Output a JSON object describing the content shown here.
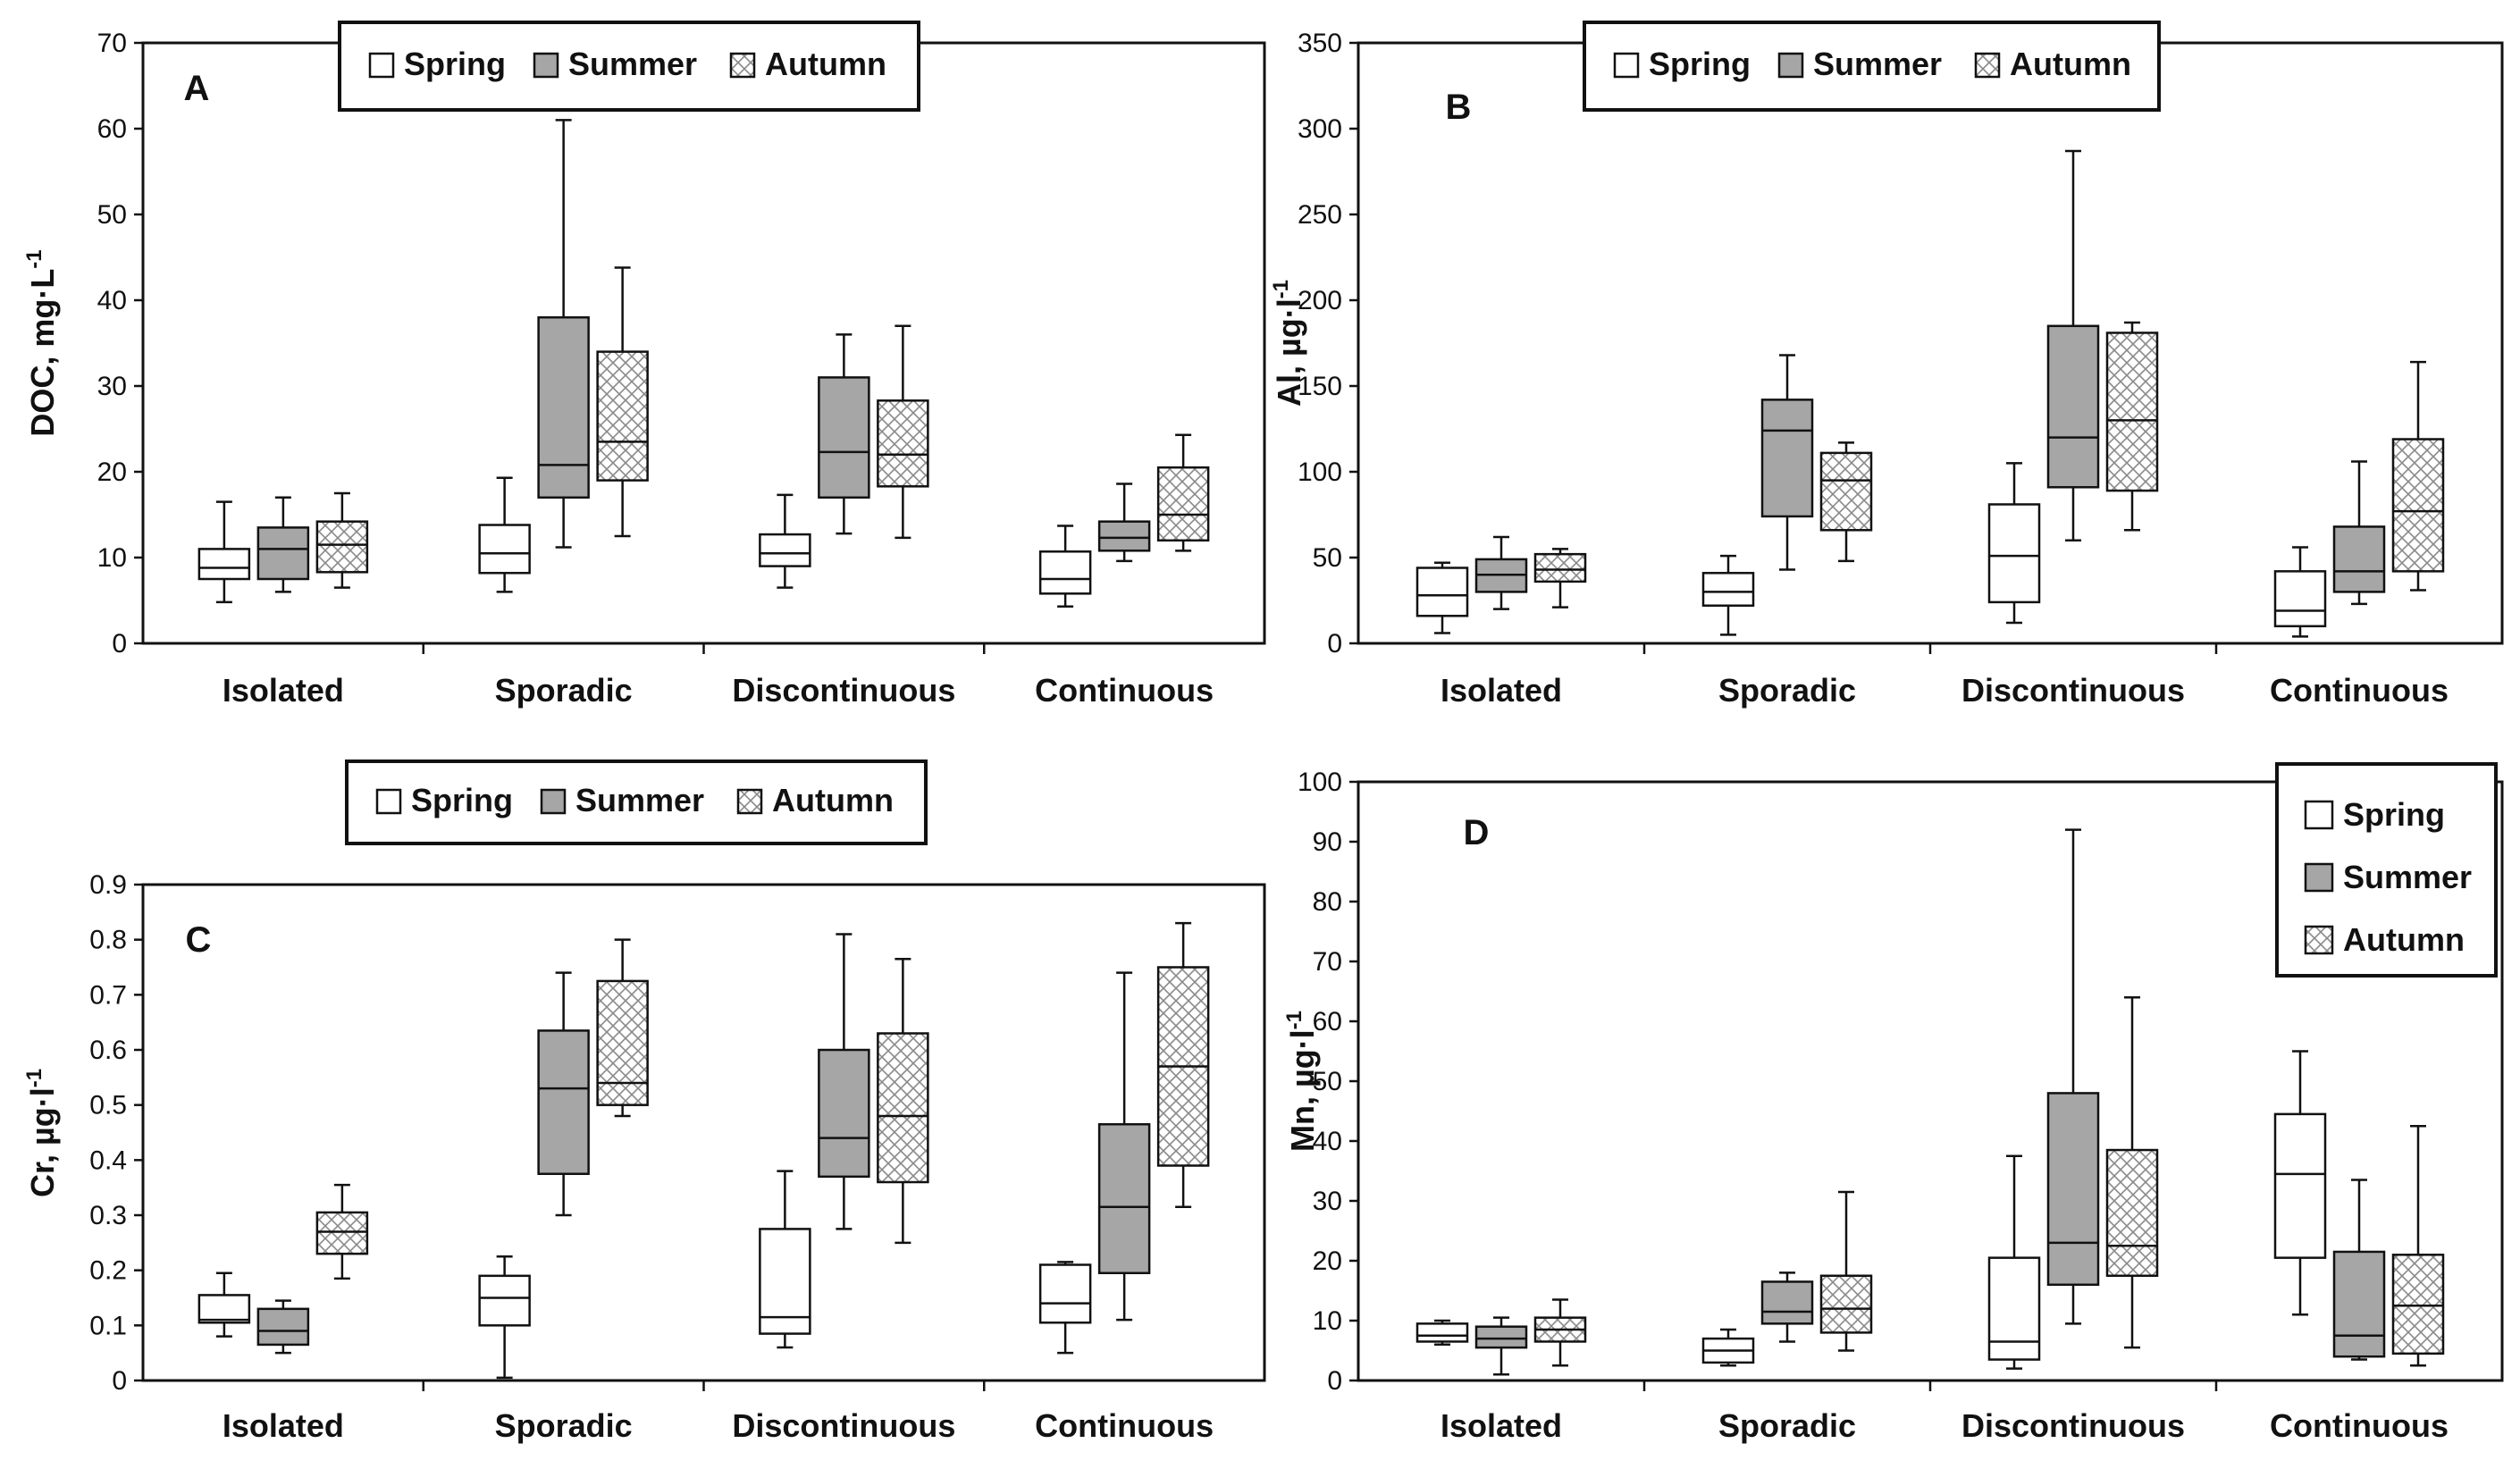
{
  "colors": {
    "spring": "#ffffff",
    "summer": "#a6a6a6",
    "autumn_bg": "#ffffff",
    "autumn_hatch": "#8a8a8a",
    "stroke": "#111111"
  },
  "chart_data": [
    {
      "type": "boxplot",
      "panel_label": "A",
      "ylabel_main": "DOC, mg·L",
      "ylabel_sup": "-1",
      "ylim": [
        0,
        70
      ],
      "yticks": [
        "0",
        "10",
        "20",
        "30",
        "40",
        "50",
        "60",
        "70"
      ],
      "categories": [
        "Isolated",
        "Sporadic",
        "Discontinuous",
        "Continuous"
      ],
      "legend": {
        "placement": "top-center",
        "layout": "horizontal",
        "entries": [
          "Spring",
          "Summer",
          "Autumn"
        ]
      },
      "series": [
        {
          "name": "Spring",
          "boxes": [
            {
              "min": 4.8,
              "q1": 7.5,
              "median": 8.8,
              "q3": 11.0,
              "max": 16.5
            },
            {
              "min": 6.0,
              "q1": 8.2,
              "median": 10.5,
              "q3": 13.8,
              "max": 19.3
            },
            {
              "min": 6.5,
              "q1": 9.0,
              "median": 10.5,
              "q3": 12.7,
              "max": 17.3
            },
            {
              "min": 4.3,
              "q1": 5.8,
              "median": 7.5,
              "q3": 10.7,
              "max": 13.7
            }
          ]
        },
        {
          "name": "Summer",
          "boxes": [
            {
              "min": 6.0,
              "q1": 7.5,
              "median": 11.0,
              "q3": 13.5,
              "max": 17.0
            },
            {
              "min": 11.2,
              "q1": 17.0,
              "median": 20.8,
              "q3": 38.0,
              "max": 61.0
            },
            {
              "min": 12.8,
              "q1": 17.0,
              "median": 22.3,
              "q3": 31.0,
              "max": 36.0
            },
            {
              "min": 9.6,
              "q1": 10.8,
              "median": 12.3,
              "q3": 14.2,
              "max": 18.6
            }
          ]
        },
        {
          "name": "Autumn",
          "boxes": [
            {
              "min": 6.5,
              "q1": 8.3,
              "median": 11.5,
              "q3": 14.2,
              "max": 17.5
            },
            {
              "min": 12.5,
              "q1": 19.0,
              "median": 23.5,
              "q3": 34.0,
              "max": 43.8
            },
            {
              "min": 12.3,
              "q1": 18.3,
              "median": 22.0,
              "q3": 28.3,
              "max": 37.0
            },
            {
              "min": 10.8,
              "q1": 12.0,
              "median": 15.0,
              "q3": 20.5,
              "max": 24.3
            }
          ]
        }
      ]
    },
    {
      "type": "boxplot",
      "panel_label": "B",
      "ylabel_main": "Al, µg·l",
      "ylabel_sup": "-1",
      "ylim": [
        0,
        350
      ],
      "yticks": [
        "0",
        "50",
        "100",
        "150",
        "200",
        "250",
        "300",
        "350"
      ],
      "categories": [
        "Isolated",
        "Sporadic",
        "Discontinuous",
        "Continuous"
      ],
      "legend": {
        "placement": "top-center",
        "layout": "horizontal",
        "entries": [
          "Spring",
          "Summer",
          "Autumn"
        ]
      },
      "series": [
        {
          "name": "Spring",
          "boxes": [
            {
              "min": 6,
              "q1": 16,
              "median": 28,
              "q3": 44,
              "max": 47
            },
            {
              "min": 5,
              "q1": 22,
              "median": 30,
              "q3": 41,
              "max": 51
            },
            {
              "min": 12,
              "q1": 24,
              "median": 51,
              "q3": 81,
              "max": 105
            },
            {
              "min": 4,
              "q1": 10,
              "median": 19,
              "q3": 42,
              "max": 56
            }
          ]
        },
        {
          "name": "Summer",
          "boxes": [
            {
              "min": 20,
              "q1": 30,
              "median": 40,
              "q3": 49,
              "max": 62
            },
            {
              "min": 43,
              "q1": 74,
              "median": 124,
              "q3": 142,
              "max": 168
            },
            {
              "min": 60,
              "q1": 91,
              "median": 120,
              "q3": 185,
              "max": 287
            },
            {
              "min": 23,
              "q1": 30,
              "median": 42,
              "q3": 68,
              "max": 106
            }
          ]
        },
        {
          "name": "Autumn",
          "boxes": [
            {
              "min": 21,
              "q1": 36,
              "median": 43,
              "q3": 52,
              "max": 55
            },
            {
              "min": 48,
              "q1": 66,
              "median": 95,
              "q3": 111,
              "max": 117
            },
            {
              "min": 66,
              "q1": 89,
              "median": 130,
              "q3": 181,
              "max": 187
            },
            {
              "min": 31,
              "q1": 42,
              "median": 77,
              "q3": 119,
              "max": 164
            }
          ]
        }
      ]
    },
    {
      "type": "boxplot",
      "panel_label": "C",
      "ylabel_main": "Cr, µg·l",
      "ylabel_sup": "-1",
      "ylim": [
        0,
        0.9
      ],
      "yticks": [
        "0",
        "0.1",
        "0.2",
        "0.3",
        "0.4",
        "0.5",
        "0.6",
        "0.7",
        "0.8",
        "0.9"
      ],
      "categories": [
        "Isolated",
        "Sporadic",
        "Discontinuous",
        "Continuous"
      ],
      "legend": {
        "placement": "above-plot",
        "layout": "horizontal",
        "entries": [
          "Spring",
          "Summer",
          "Autumn"
        ]
      },
      "series": [
        {
          "name": "Spring",
          "boxes": [
            {
              "min": 0.08,
              "q1": 0.105,
              "median": 0.11,
              "q3": 0.155,
              "max": 0.195
            },
            {
              "min": 0.005,
              "q1": 0.1,
              "median": 0.15,
              "q3": 0.19,
              "max": 0.225
            },
            {
              "min": 0.06,
              "q1": 0.085,
              "median": 0.115,
              "q3": 0.275,
              "max": 0.38
            },
            {
              "min": 0.05,
              "q1": 0.105,
              "median": 0.14,
              "q3": 0.21,
              "max": 0.215
            }
          ]
        },
        {
          "name": "Summer",
          "boxes": [
            {
              "min": 0.05,
              "q1": 0.065,
              "median": 0.09,
              "q3": 0.13,
              "max": 0.145
            },
            {
              "min": 0.3,
              "q1": 0.375,
              "median": 0.53,
              "q3": 0.635,
              "max": 0.74
            },
            {
              "min": 0.275,
              "q1": 0.37,
              "median": 0.44,
              "q3": 0.6,
              "max": 0.81
            },
            {
              "min": 0.11,
              "q1": 0.195,
              "median": 0.315,
              "q3": 0.465,
              "max": 0.74
            }
          ]
        },
        {
          "name": "Autumn",
          "boxes": [
            {
              "min": 0.185,
              "q1": 0.23,
              "median": 0.27,
              "q3": 0.305,
              "max": 0.355
            },
            {
              "min": 0.48,
              "q1": 0.5,
              "median": 0.54,
              "q3": 0.725,
              "max": 0.8
            },
            {
              "min": 0.25,
              "q1": 0.36,
              "median": 0.48,
              "q3": 0.63,
              "max": 0.765
            },
            {
              "min": 0.315,
              "q1": 0.39,
              "median": 0.57,
              "q3": 0.75,
              "max": 0.83
            }
          ]
        }
      ]
    },
    {
      "type": "boxplot",
      "panel_label": "D",
      "ylabel_main": "Mn, µg·l",
      "ylabel_sup": "-1",
      "ylim": [
        0,
        100
      ],
      "yticks": [
        "0",
        "10",
        "20",
        "30",
        "40",
        "50",
        "60",
        "70",
        "80",
        "90",
        "100"
      ],
      "categories": [
        "Isolated",
        "Sporadic",
        "Discontinuous",
        "Continuous"
      ],
      "legend": {
        "placement": "top-right",
        "layout": "vertical",
        "entries": [
          "Spring",
          "Summer",
          "Autumn"
        ]
      },
      "series": [
        {
          "name": "Spring",
          "boxes": [
            {
              "min": 6.0,
              "q1": 6.5,
              "median": 7.5,
              "q3": 9.5,
              "max": 10.0
            },
            {
              "min": 2.5,
              "q1": 3.0,
              "median": 5.0,
              "q3": 7.0,
              "max": 8.5
            },
            {
              "min": 2.0,
              "q1": 3.5,
              "median": 6.5,
              "q3": 20.5,
              "max": 37.5
            },
            {
              "min": 11.0,
              "q1": 20.5,
              "median": 34.5,
              "q3": 44.5,
              "max": 55.0
            }
          ]
        },
        {
          "name": "Summer",
          "boxes": [
            {
              "min": 1.0,
              "q1": 5.5,
              "median": 7.0,
              "q3": 9.0,
              "max": 10.5
            },
            {
              "min": 6.5,
              "q1": 9.5,
              "median": 11.5,
              "q3": 16.5,
              "max": 18.0
            },
            {
              "min": 9.5,
              "q1": 16.0,
              "median": 23.0,
              "q3": 48.0,
              "max": 92.0
            },
            {
              "min": 3.5,
              "q1": 4.0,
              "median": 7.5,
              "q3": 21.5,
              "max": 33.5
            }
          ]
        },
        {
          "name": "Autumn",
          "boxes": [
            {
              "min": 2.5,
              "q1": 6.5,
              "median": 8.5,
              "q3": 10.5,
              "max": 13.5
            },
            {
              "min": 5.0,
              "q1": 8.0,
              "median": 12.0,
              "q3": 17.5,
              "max": 31.5
            },
            {
              "min": 5.5,
              "q1": 17.5,
              "median": 22.5,
              "q3": 38.5,
              "max": 64.0
            },
            {
              "min": 2.5,
              "q1": 4.5,
              "median": 12.5,
              "q3": 21.0,
              "max": 42.5
            }
          ]
        }
      ]
    }
  ]
}
